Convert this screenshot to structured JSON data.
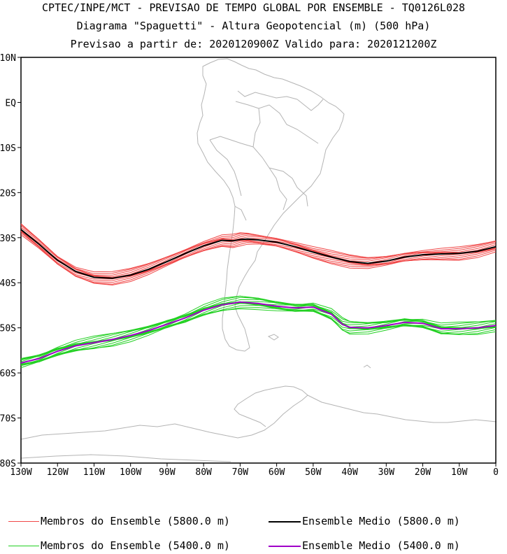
{
  "titles": {
    "line1": "CPTEC/INPE/MCT - PREVISAO DE TEMPO GLOBAL POR ENSEMBLE - TQ0126L028",
    "line2": "Diagrama \"Spaguetti\" - Altura Geopotencial (m) (500 hPa)",
    "line3": "Previsao a partir de: 2020120900Z  Valido para: 2020121200Z"
  },
  "axes": {
    "lon_range": [
      -130,
      0
    ],
    "lat_range": [
      -80,
      10
    ],
    "lon_ticks": [
      {
        "value": -130,
        "label": "130W"
      },
      {
        "value": -120,
        "label": "120W"
      },
      {
        "value": -110,
        "label": "110W"
      },
      {
        "value": -100,
        "label": "100W"
      },
      {
        "value": -90,
        "label": "90W"
      },
      {
        "value": -80,
        "label": "80W"
      },
      {
        "value": -70,
        "label": "70W"
      },
      {
        "value": -60,
        "label": "60W"
      },
      {
        "value": -50,
        "label": "50W"
      },
      {
        "value": -40,
        "label": "40W"
      },
      {
        "value": -30,
        "label": "30W"
      },
      {
        "value": -20,
        "label": "20W"
      },
      {
        "value": -10,
        "label": "10W"
      },
      {
        "value": 0,
        "label": "0"
      }
    ],
    "lat_ticks": [
      {
        "value": 10,
        "label": "10N"
      },
      {
        "value": 0,
        "label": "EQ"
      },
      {
        "value": -10,
        "label": "10S"
      },
      {
        "value": -20,
        "label": "20S"
      },
      {
        "value": -30,
        "label": "30S"
      },
      {
        "value": -40,
        "label": "40S"
      },
      {
        "value": -50,
        "label": "50S"
      },
      {
        "value": -60,
        "label": "60S"
      },
      {
        "value": -70,
        "label": "70S"
      },
      {
        "value": -80,
        "label": "80S"
      }
    ]
  },
  "colors": {
    "member_5800": "#f04848",
    "mean_5800": "#000000",
    "member_5400": "#22d022",
    "mean_5400": "#a000c8",
    "coast": "#b4b4b4"
  },
  "chart_data": {
    "type": "line",
    "x_unit": "longitude (deg)",
    "y_unit": "latitude (deg)",
    "series": [
      {
        "name": "Ensemble Medio (5800.0 m)",
        "x": [
          -130,
          -125,
          -120,
          -115,
          -110,
          -105,
          -100,
          -95,
          -90,
          -85,
          -80,
          -75,
          -72,
          -70,
          -68,
          -65,
          -60,
          -55,
          -50,
          -45,
          -40,
          -35,
          -30,
          -25,
          -20,
          -15,
          -10,
          -5,
          0
        ],
        "y": [
          -28.2,
          -31.5,
          -35.0,
          -37.5,
          -38.8,
          -39.0,
          -38.3,
          -37.0,
          -35.3,
          -33.5,
          -31.8,
          -30.6,
          -30.7,
          -30.4,
          -30.3,
          -30.5,
          -31.0,
          -32.0,
          -33.2,
          -34.3,
          -35.3,
          -35.7,
          -35.2,
          -34.3,
          -33.8,
          -33.6,
          -33.5,
          -33.0,
          -32.0
        ]
      },
      {
        "name": "Ensemble Medio (5400.0 m)",
        "x": [
          -130,
          -125,
          -120,
          -115,
          -110,
          -105,
          -100,
          -95,
          -90,
          -85,
          -80,
          -75,
          -70,
          -65,
          -60,
          -55,
          -50,
          -45,
          -42,
          -40,
          -35,
          -30,
          -25,
          -20,
          -15,
          -10,
          -5,
          0
        ],
        "y": [
          -57.8,
          -56.8,
          -55.2,
          -54.0,
          -53.3,
          -52.6,
          -51.7,
          -50.6,
          -49.2,
          -47.8,
          -46.1,
          -44.9,
          -44.3,
          -44.6,
          -45.2,
          -45.6,
          -45.4,
          -47.0,
          -49.2,
          -49.9,
          -50.0,
          -49.5,
          -48.8,
          -49.0,
          -50.2,
          -50.2,
          -50.0,
          -49.5
        ]
      }
    ],
    "ensemble_members": [
      {
        "name": "Membros do Ensemble (5800.0 m)",
        "count": 14
      },
      {
        "name": "Membros do Ensemble (5400.0 m)",
        "count": 14
      }
    ]
  },
  "legend": {
    "member_5800": "Membros do Ensemble (5800.0 m)",
    "mean_5800": "Ensemble Medio (5800.0 m)",
    "member_5400": "Membros do Ensemble (5400.0 m)",
    "mean_5400": "Ensemble Medio (5400.0 m)"
  }
}
